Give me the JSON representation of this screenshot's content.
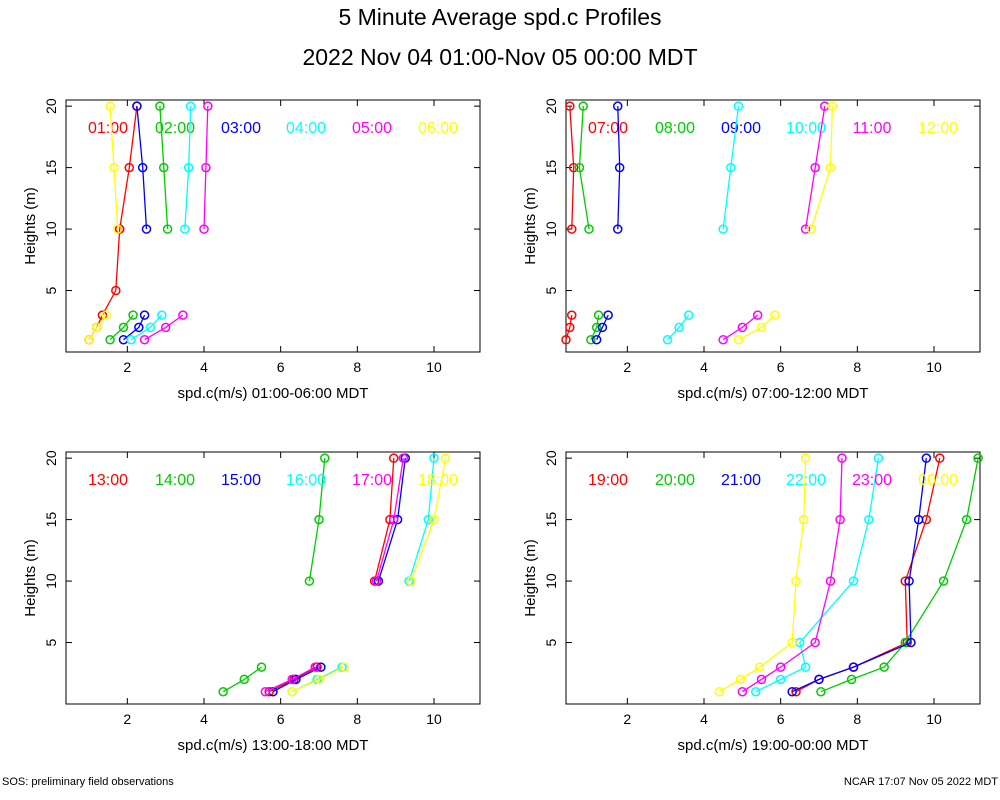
{
  "header": {
    "title": "5 Minute Average spd.c Profiles",
    "subtitle": "2022 Nov 04 01:00-Nov 05 00:00 MDT"
  },
  "footer": {
    "left": "SOS: preliminary field observations",
    "right": "NCAR 17:07 Nov 05 2022 MDT"
  },
  "chart_data": [
    {
      "type": "line",
      "xlabel": "spd.c(m/s) 01:00-06:00 MDT",
      "ylabel": "Heights (m)",
      "xlim": [
        0.4,
        11.2
      ],
      "ylim": [
        0,
        20.5
      ],
      "xticks": [
        2,
        4,
        6,
        8,
        10
      ],
      "yticks": [
        5,
        10,
        15,
        20
      ],
      "series": [
        {
          "name": "01:00",
          "color": "#ff0000",
          "upper": [
            [
              1.8,
              10
            ],
            [
              2.05,
              15
            ],
            [
              2.25,
              20
            ]
          ],
          "lower": [
            [
              1.0,
              1
            ],
            [
              1.2,
              2
            ],
            [
              1.35,
              3
            ],
            [
              1.7,
              5
            ],
            [
              1.8,
              10
            ]
          ]
        },
        {
          "name": "02:00",
          "color": "#00cc00",
          "upper": [
            [
              3.05,
              10
            ],
            [
              2.95,
              15
            ],
            [
              2.85,
              20
            ]
          ],
          "lower": [
            [
              1.55,
              1
            ],
            [
              1.9,
              2
            ],
            [
              2.15,
              3
            ]
          ]
        },
        {
          "name": "03:00",
          "color": "#0000ff",
          "upper": [
            [
              2.5,
              10
            ],
            [
              2.4,
              15
            ],
            [
              2.25,
              20
            ]
          ],
          "lower": [
            [
              1.9,
              1
            ],
            [
              2.3,
              2
            ],
            [
              2.45,
              3
            ]
          ]
        },
        {
          "name": "04:00",
          "color": "#00ffff",
          "upper": [
            [
              3.5,
              10
            ],
            [
              3.6,
              15
            ],
            [
              3.65,
              20
            ]
          ],
          "lower": [
            [
              2.1,
              1
            ],
            [
              2.6,
              2
            ],
            [
              2.9,
              3
            ]
          ]
        },
        {
          "name": "05:00",
          "color": "#ff00ff",
          "upper": [
            [
              4.0,
              10
            ],
            [
              4.05,
              15
            ],
            [
              4.1,
              20
            ]
          ],
          "lower": [
            [
              2.45,
              1
            ],
            [
              3.0,
              2
            ],
            [
              3.45,
              3
            ]
          ]
        },
        {
          "name": "06:00",
          "color": "#ffff00",
          "upper": [
            [
              1.75,
              10
            ],
            [
              1.65,
              15
            ],
            [
              1.55,
              20
            ]
          ],
          "lower": [
            [
              1.0,
              1
            ],
            [
              1.2,
              2
            ],
            [
              1.45,
              3
            ]
          ]
        }
      ]
    },
    {
      "type": "line",
      "xlabel": "spd.c(m/s) 07:00-12:00 MDT",
      "ylabel": "Heights (m)",
      "xlim": [
        0.4,
        11.2
      ],
      "ylim": [
        0,
        20.5
      ],
      "xticks": [
        2,
        4,
        6,
        8,
        10
      ],
      "yticks": [
        5,
        10,
        15,
        20
      ],
      "series": [
        {
          "name": "07:00",
          "color": "#ff0000",
          "upper": [
            [
              0.55,
              10
            ],
            [
              0.6,
              15
            ],
            [
              0.5,
              20
            ]
          ],
          "lower": [
            [
              0.4,
              1
            ],
            [
              0.5,
              2
            ],
            [
              0.55,
              3
            ]
          ]
        },
        {
          "name": "08:00",
          "color": "#00cc00",
          "upper": [
            [
              1.0,
              10
            ],
            [
              0.75,
              15
            ],
            [
              0.85,
              20
            ]
          ],
          "lower": [
            [
              1.05,
              1
            ],
            [
              1.2,
              2
            ],
            [
              1.25,
              3
            ]
          ]
        },
        {
          "name": "09:00",
          "color": "#0000ff",
          "upper": [
            [
              1.75,
              10
            ],
            [
              1.8,
              15
            ],
            [
              1.75,
              20
            ]
          ],
          "lower": [
            [
              1.2,
              1
            ],
            [
              1.35,
              2
            ],
            [
              1.5,
              3
            ]
          ]
        },
        {
          "name": "10:00",
          "color": "#00ffff",
          "upper": [
            [
              4.5,
              10
            ],
            [
              4.7,
              15
            ],
            [
              4.9,
              20
            ]
          ],
          "lower": [
            [
              3.05,
              1
            ],
            [
              3.35,
              2
            ],
            [
              3.6,
              3
            ]
          ]
        },
        {
          "name": "11:00",
          "color": "#ff00ff",
          "upper": [
            [
              6.65,
              10
            ],
            [
              6.9,
              15
            ],
            [
              7.15,
              20
            ]
          ],
          "lower": [
            [
              4.5,
              1
            ],
            [
              5.0,
              2
            ],
            [
              5.4,
              3
            ]
          ]
        },
        {
          "name": "12:00",
          "color": "#ffff00",
          "upper": [
            [
              6.8,
              10
            ],
            [
              7.3,
              15
            ],
            [
              7.35,
              20
            ]
          ],
          "lower": [
            [
              4.9,
              1
            ],
            [
              5.5,
              2
            ],
            [
              5.85,
              3
            ]
          ]
        }
      ]
    },
    {
      "type": "line",
      "xlabel": "spd.c(m/s) 13:00-18:00 MDT",
      "ylabel": "Heights (m)",
      "xlim": [
        0.4,
        11.2
      ],
      "ylim": [
        0,
        20.5
      ],
      "xticks": [
        2,
        4,
        6,
        8,
        10
      ],
      "yticks": [
        5,
        10,
        15,
        20
      ],
      "series": [
        {
          "name": "13:00",
          "color": "#ff0000",
          "upper": [
            [
              8.45,
              10
            ],
            [
              8.85,
              15
            ],
            [
              8.95,
              20
            ]
          ],
          "lower": [
            [
              5.7,
              1
            ],
            [
              6.35,
              2
            ],
            [
              6.95,
              3
            ]
          ]
        },
        {
          "name": "14:00",
          "color": "#00cc00",
          "upper": [
            [
              6.75,
              10
            ],
            [
              7.0,
              15
            ],
            [
              7.15,
              20
            ]
          ],
          "lower": [
            [
              4.5,
              1
            ],
            [
              5.05,
              2
            ],
            [
              5.5,
              3
            ]
          ]
        },
        {
          "name": "15:00",
          "color": "#0000ff",
          "upper": [
            [
              8.55,
              10
            ],
            [
              9.05,
              15
            ],
            [
              9.25,
              20
            ]
          ],
          "lower": [
            [
              5.8,
              1
            ],
            [
              6.4,
              2
            ],
            [
              7.05,
              3
            ]
          ]
        },
        {
          "name": "16:00",
          "color": "#00ffff",
          "upper": [
            [
              9.35,
              10
            ],
            [
              9.85,
              15
            ],
            [
              10.0,
              20
            ]
          ],
          "lower": [
            [
              6.3,
              1
            ],
            [
              6.95,
              2
            ],
            [
              7.6,
              3
            ]
          ]
        },
        {
          "name": "17:00",
          "color": "#ff00ff",
          "upper": [
            [
              8.5,
              10
            ],
            [
              8.95,
              15
            ],
            [
              9.2,
              20
            ]
          ],
          "lower": [
            [
              5.6,
              1
            ],
            [
              6.3,
              2
            ],
            [
              6.9,
              3
            ]
          ]
        },
        {
          "name": "18:00",
          "color": "#ffff00",
          "upper": [
            [
              9.4,
              10
            ],
            [
              10.0,
              15
            ],
            [
              10.3,
              20
            ]
          ],
          "lower": [
            [
              6.3,
              1
            ],
            [
              7.0,
              2
            ],
            [
              7.65,
              3
            ]
          ]
        }
      ]
    },
    {
      "type": "line",
      "xlabel": "spd.c(m/s) 19:00-00:00 MDT",
      "ylabel": "Heights (m)",
      "xlim": [
        0.4,
        11.2
      ],
      "ylim": [
        0,
        20.5
      ],
      "xticks": [
        2,
        4,
        6,
        8,
        10
      ],
      "yticks": [
        5,
        10,
        15,
        20
      ],
      "series": [
        {
          "name": "19:00",
          "color": "#ff0000",
          "upper": [
            [
              6.4,
              1
            ],
            [
              7.0,
              2
            ],
            [
              7.9,
              3
            ],
            [
              9.3,
              5
            ],
            [
              9.25,
              10
            ],
            [
              9.8,
              15
            ],
            [
              10.15,
              20
            ]
          ],
          "lower": []
        },
        {
          "name": "20:00",
          "color": "#00cc00",
          "upper": [
            [
              7.05,
              1
            ],
            [
              7.85,
              2
            ],
            [
              8.7,
              3
            ],
            [
              9.25,
              5
            ],
            [
              10.25,
              10
            ],
            [
              10.85,
              15
            ],
            [
              11.15,
              20
            ]
          ],
          "lower": []
        },
        {
          "name": "21:00",
          "color": "#0000ff",
          "upper": [
            [
              6.3,
              1
            ],
            [
              7.0,
              2
            ],
            [
              7.9,
              3
            ],
            [
              9.4,
              5
            ],
            [
              9.35,
              10
            ],
            [
              9.6,
              15
            ],
            [
              9.8,
              20
            ]
          ],
          "lower": []
        },
        {
          "name": "22:00",
          "color": "#00ffff",
          "upper": [
            [
              5.35,
              1
            ],
            [
              6.0,
              2
            ],
            [
              6.65,
              3
            ],
            [
              6.5,
              5
            ],
            [
              7.9,
              10
            ],
            [
              8.3,
              15
            ],
            [
              8.55,
              20
            ]
          ],
          "lower": []
        },
        {
          "name": "23:00",
          "color": "#ff00ff",
          "upper": [
            [
              5.0,
              1
            ],
            [
              5.5,
              2
            ],
            [
              6.0,
              3
            ],
            [
              6.9,
              5
            ],
            [
              7.3,
              10
            ],
            [
              7.55,
              15
            ],
            [
              7.6,
              20
            ]
          ],
          "lower": []
        },
        {
          "name": "00:00",
          "color": "#ffff00",
          "upper": [
            [
              4.4,
              1
            ],
            [
              4.95,
              2
            ],
            [
              5.45,
              3
            ],
            [
              6.3,
              5
            ],
            [
              6.4,
              10
            ],
            [
              6.6,
              15
            ],
            [
              6.65,
              20
            ]
          ],
          "lower": []
        }
      ]
    }
  ]
}
